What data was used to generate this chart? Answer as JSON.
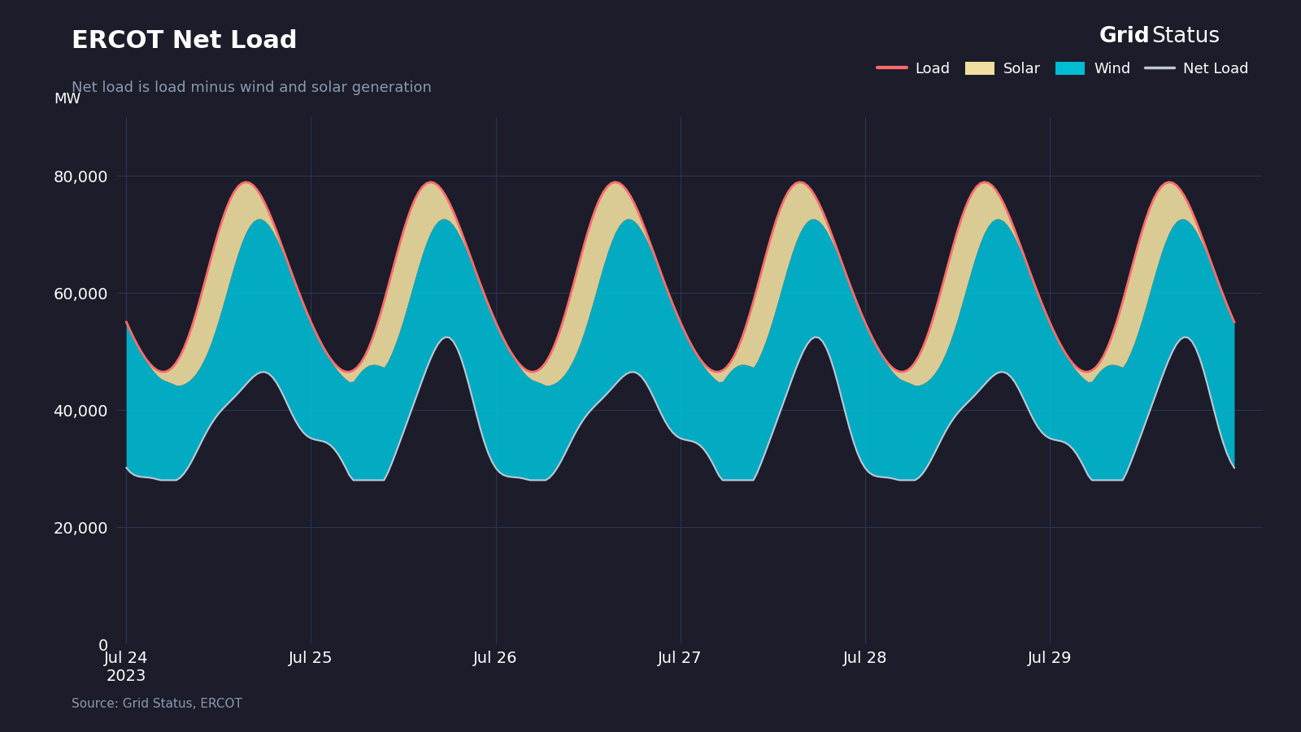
{
  "title": "ERCOT Net Load",
  "subtitle": "Net load is load minus wind and solar generation",
  "source": "Source: Grid Status, ERCOT",
  "ylabel": "MW",
  "background_color": "#1c1c2a",
  "load_color": "#ff6b6b",
  "solar_color": "#f0dfa0",
  "wind_color": "#00bcd4",
  "net_load_color": "#c0c8d8",
  "grid_color": "#2a3555",
  "text_color": "#ffffff",
  "subtitle_color": "#8a9ab0",
  "source_color": "#8a9ab0",
  "yticks": [
    0,
    20000,
    40000,
    60000,
    80000
  ],
  "ylim": [
    0,
    90000
  ],
  "xlim": [
    -0.05,
    6.15
  ],
  "date_labels": [
    "Jul 24\n2023",
    "Jul 25",
    "Jul 26",
    "Jul 27",
    "Jul 28",
    "Jul 29"
  ],
  "title_fontsize": 22,
  "subtitle_fontsize": 13,
  "tick_fontsize": 14,
  "legend_fontsize": 13,
  "source_fontsize": 11,
  "mw_fontsize": 13
}
